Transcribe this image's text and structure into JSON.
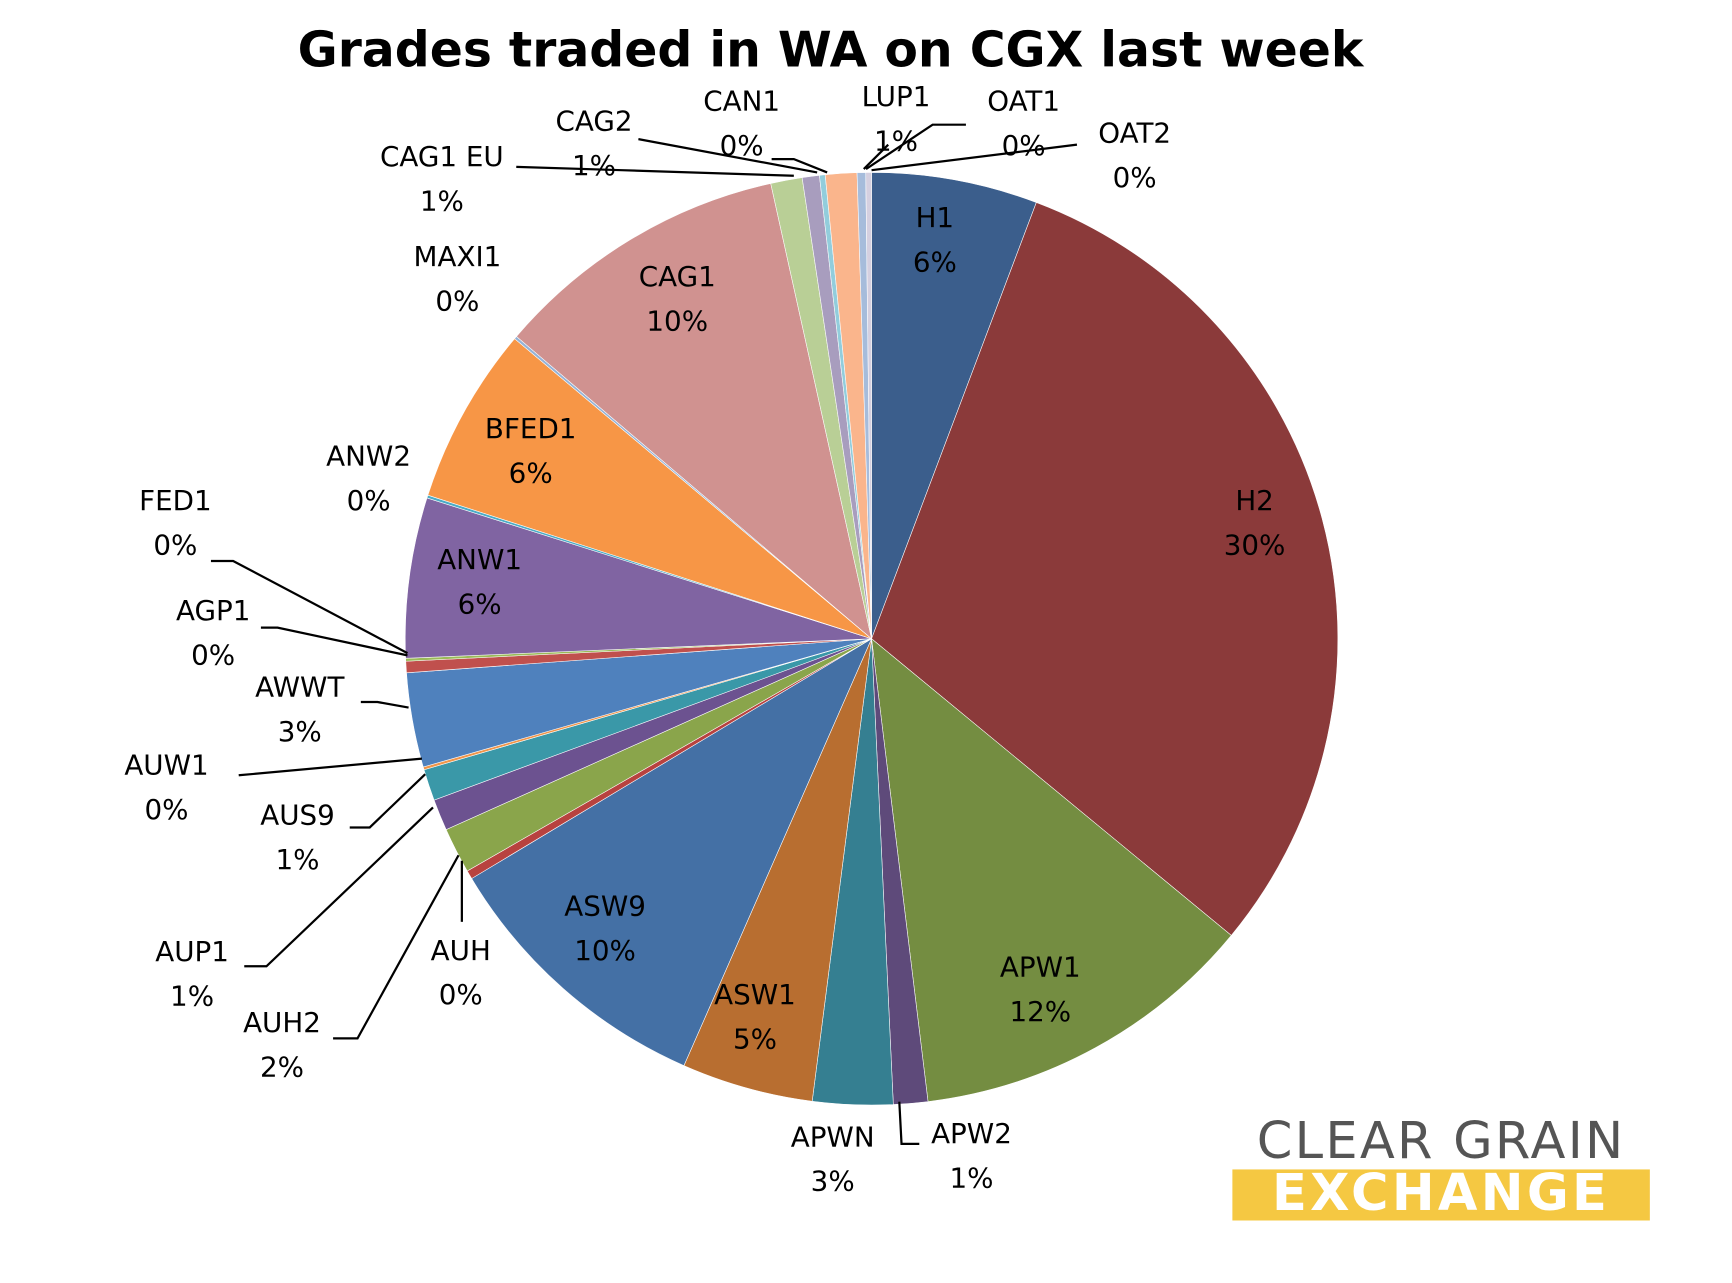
{
  "chart_data": {
    "type": "pie",
    "title": "Grades traded in WA on CGX last week",
    "categories": [
      "H1",
      "H2",
      "APW1",
      "APW2",
      "APWN",
      "ASW1",
      "ASW9",
      "AUH",
      "AUH2",
      "AUP1",
      "AUS9",
      "AUW1",
      "AWWT",
      "AGP1",
      "FED1",
      "ANW1",
      "ANW2",
      "BFED1",
      "MAXI1",
      "CAG1",
      "CAG1 EU",
      "CAG2",
      "CAN1",
      "LUP1",
      "OAT1",
      "OAT2"
    ],
    "values": [
      5.8,
      30.5,
      12.2,
      1.2,
      2.8,
      4.6,
      9.9,
      0.3,
      1.6,
      1.1,
      1.1,
      0.1,
      3.3,
      0.4,
      0.1,
      5.6,
      0.1,
      6.2,
      0.1,
      10.4,
      1.1,
      0.6,
      0.2,
      1.1,
      0.3,
      0.2
    ],
    "value_labels": [
      "6%",
      "30%",
      "12%",
      "1%",
      "3%",
      "5%",
      "10%",
      "0%",
      "2%",
      "1%",
      "1%",
      "0%",
      "3%",
      "0%",
      "0%",
      "6%",
      "0%",
      "6%",
      "0%",
      "10%",
      "1%",
      "1%",
      "0%",
      "1%",
      "0%",
      "0%"
    ],
    "colors": [
      "#3b5e8c",
      "#8b3a3a",
      "#748d41",
      "#5e4a7a",
      "#357f91",
      "#b86e30",
      "#4470a5",
      "#b8423f",
      "#8aa54b",
      "#6c5290",
      "#3a98a8",
      "#f0954a",
      "#4f81bd",
      "#c0504d",
      "#9bbb59",
      "#8064a2",
      "#4bacc6",
      "#f79646",
      "#95b3d7",
      "#d09290",
      "#b9cf96",
      "#a89dbe",
      "#92cddc",
      "#fab58c",
      "#a6bcdb",
      "#d5d0e0"
    ]
  },
  "logo": {
    "line1": "CLEAR GRAIN",
    "line2": "EXCHANGE"
  }
}
